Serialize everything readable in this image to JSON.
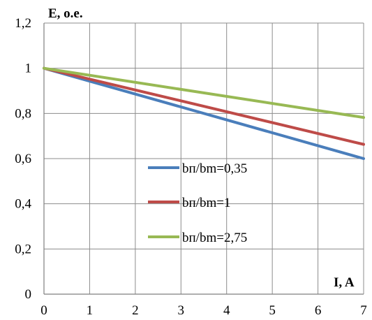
{
  "chart_data": {
    "type": "line",
    "title": "",
    "xlabel": "I, A",
    "ylabel": "E, o.e.",
    "xlim": [
      0,
      7
    ],
    "ylim": [
      0,
      1.2
    ],
    "x_ticks": [
      "0",
      "1",
      "2",
      "3",
      "4",
      "5",
      "6",
      "7"
    ],
    "y_ticks": [
      "0",
      "0,2",
      "0,4",
      "0,6",
      "0,8",
      "1",
      "1,2"
    ],
    "grid": true,
    "legend_position": "center",
    "series": [
      {
        "name": "bп/bm=0,35",
        "color": "#4a7ebb",
        "x": [
          0,
          7
        ],
        "y": [
          1.0,
          0.6
        ]
      },
      {
        "name": "bп/bm=1",
        "color": "#be4b48",
        "x": [
          0,
          7
        ],
        "y": [
          1.0,
          0.663
        ]
      },
      {
        "name": "bп/bm=2,75",
        "color": "#98b954",
        "x": [
          0,
          7
        ],
        "y": [
          1.0,
          0.782
        ]
      }
    ]
  }
}
